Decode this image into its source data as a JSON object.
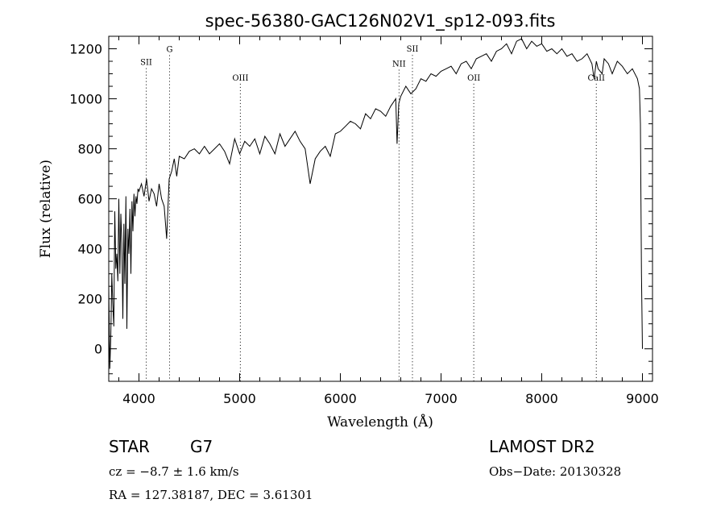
{
  "chart_data": {
    "type": "line",
    "title": "spec-56380-GAC126N02V1_sp12-093.fits",
    "xlabel": "Wavelength (Å)",
    "ylabel": "Flux (relative)",
    "xlim": [
      3700,
      9100
    ],
    "ylim": [
      -130,
      1250
    ],
    "xticks": [
      4000,
      5000,
      6000,
      7000,
      8000,
      9000
    ],
    "yticks": [
      0,
      200,
      400,
      600,
      800,
      1000,
      1200
    ],
    "grid": false,
    "line_color": "#000000",
    "series": [
      {
        "x": [
          3700,
          3710,
          3720,
          3730,
          3740,
          3750,
          3760,
          3770,
          3780,
          3790,
          3800,
          3810,
          3820,
          3830,
          3840,
          3850,
          3860,
          3870,
          3880,
          3890,
          3900,
          3910,
          3920,
          3930,
          3940,
          3950,
          3960,
          3970,
          3980,
          3990,
          4000,
          4025,
          4050,
          4075,
          4100,
          4125,
          4150,
          4175,
          4200,
          4225,
          4250,
          4275,
          4300,
          4325,
          4350,
          4375,
          4400,
          4450,
          4500,
          4550,
          4600,
          4650,
          4700,
          4750,
          4800,
          4850,
          4900,
          4950,
          5000,
          5050,
          5100,
          5150,
          5200,
          5250,
          5300,
          5350,
          5400,
          5450,
          5500,
          5550,
          5600,
          5650,
          5700,
          5750,
          5800,
          5850,
          5900,
          5950,
          6000,
          6050,
          6100,
          6150,
          6200,
          6250,
          6300,
          6350,
          6400,
          6450,
          6500,
          6550,
          6563,
          6580,
          6600,
          6650,
          6700,
          6750,
          6800,
          6850,
          6900,
          6950,
          7000,
          7050,
          7100,
          7150,
          7200,
          7250,
          7300,
          7350,
          7400,
          7450,
          7500,
          7550,
          7600,
          7650,
          7700,
          7750,
          7800,
          7850,
          7900,
          7950,
          8000,
          8050,
          8100,
          8150,
          8200,
          8250,
          8300,
          8350,
          8400,
          8450,
          8498,
          8520,
          8542,
          8560,
          8600,
          8620,
          8662,
          8700,
          8750,
          8800,
          8850,
          8900,
          8950,
          8970,
          8980,
          8990,
          9000
        ],
        "y": [
          250,
          -80,
          40,
          300,
          180,
          90,
          550,
          320,
          380,
          270,
          600,
          300,
          540,
          420,
          120,
          500,
          260,
          610,
          80,
          480,
          380,
          560,
          300,
          590,
          470,
          620,
          530,
          610,
          580,
          640,
          630,
          660,
          610,
          680,
          590,
          640,
          620,
          570,
          660,
          600,
          570,
          440,
          680,
          710,
          760,
          690,
          770,
          760,
          790,
          800,
          780,
          810,
          780,
          800,
          820,
          790,
          740,
          840,
          780,
          830,
          810,
          840,
          780,
          850,
          820,
          780,
          860,
          810,
          840,
          870,
          830,
          800,
          660,
          760,
          790,
          810,
          770,
          860,
          870,
          890,
          910,
          900,
          880,
          940,
          920,
          960,
          950,
          930,
          970,
          1000,
          820,
          980,
          1010,
          1050,
          1020,
          1040,
          1080,
          1070,
          1100,
          1090,
          1110,
          1120,
          1130,
          1100,
          1140,
          1150,
          1120,
          1160,
          1170,
          1180,
          1150,
          1190,
          1200,
          1220,
          1180,
          1230,
          1240,
          1200,
          1230,
          1210,
          1220,
          1190,
          1200,
          1180,
          1200,
          1170,
          1180,
          1150,
          1160,
          1180,
          1140,
          1080,
          1150,
          1120,
          1100,
          1160,
          1140,
          1100,
          1150,
          1130,
          1100,
          1120,
          1080,
          1040,
          900,
          300,
          0
        ]
      }
    ],
    "lines": [
      {
        "label": "SII",
        "x": 4072,
        "label_y": 1135
      },
      {
        "label": "G",
        "x": 4304,
        "label_y": 1187
      },
      {
        "label": "OIII",
        "x": 5007,
        "label_y": 1073
      },
      {
        "label": "NII",
        "x": 6583,
        "label_y": 1129
      },
      {
        "label": "SII",
        "x": 6716,
        "label_y": 1188
      },
      {
        "label": "OII",
        "x": 7325,
        "label_y": 1073
      },
      {
        "label": "CaII",
        "x": 8542,
        "label_y": 1073
      }
    ]
  },
  "info": {
    "object_class": "STAR",
    "subclass": "G7",
    "survey": "LAMOST DR2",
    "redshift": "cz = −8.7 ± 1.6 km/s",
    "obs_date": "Obs−Date: 20130328",
    "coords": "RA = 127.38187, DEC =   3.61301"
  }
}
